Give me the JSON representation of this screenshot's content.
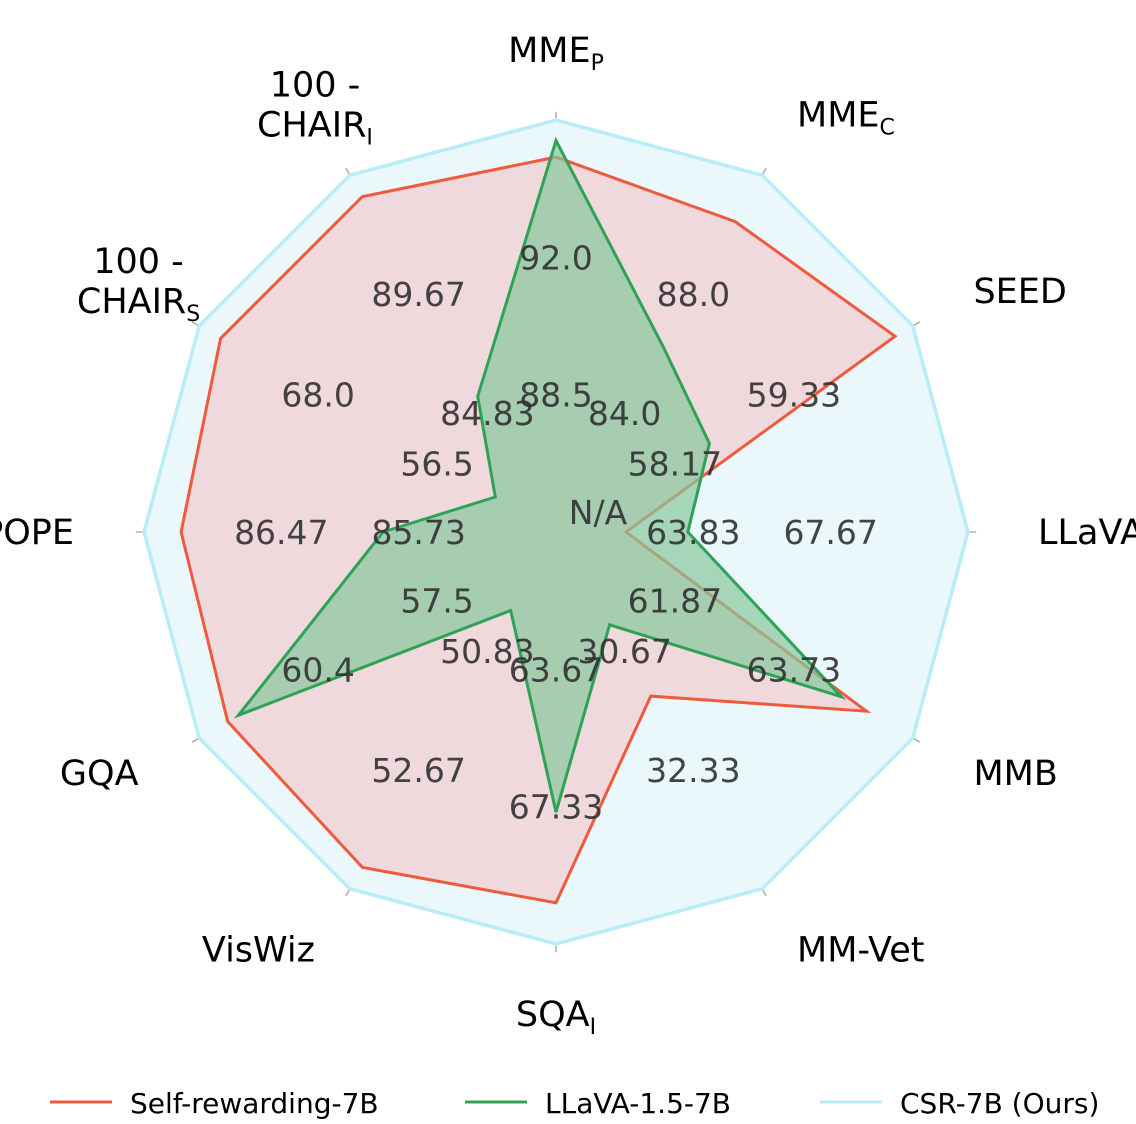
{
  "chart_data": {
    "type": "radar",
    "grid": true,
    "legend_position": "bottom",
    "axes": [
      {
        "id": "llava_w",
        "label": "LLaVA",
        "sub": "W",
        "ticks": [
          "63.83",
          "67.67"
        ]
      },
      {
        "id": "seed",
        "label": "SEED",
        "sub": "",
        "ticks": [
          "58.17",
          "59.33"
        ]
      },
      {
        "id": "mme_c",
        "label": "MME",
        "sub": "C",
        "ticks": [
          "84.0",
          "88.0"
        ]
      },
      {
        "id": "mme_p",
        "label": "MME",
        "sub": "P",
        "ticks": [
          "88.5",
          "92.0"
        ]
      },
      {
        "id": "chair_i",
        "label": "100 -",
        "label2": "CHAIR",
        "sub": "I",
        "ticks": [
          "84.83",
          "89.67"
        ]
      },
      {
        "id": "chair_s",
        "label": "100 -",
        "label2": "CHAIR",
        "sub": "S",
        "ticks": [
          "56.5",
          "68.0"
        ]
      },
      {
        "id": "pope",
        "label": "POPE",
        "sub": "",
        "ticks": [
          "85.73",
          "86.47"
        ]
      },
      {
        "id": "gqa",
        "label": "GQA",
        "sub": "",
        "ticks": [
          "57.5",
          "60.4"
        ]
      },
      {
        "id": "viswiz",
        "label": "VisWiz",
        "sub": "",
        "ticks": [
          "50.83",
          "52.67"
        ]
      },
      {
        "id": "sqa_i",
        "label": "SQA",
        "sub": "I",
        "ticks": [
          "63.67",
          "67.33"
        ]
      },
      {
        "id": "mm_vet",
        "label": "MM-Vet",
        "sub": "",
        "ticks": [
          "30.67",
          "32.33"
        ]
      },
      {
        "id": "mmb",
        "label": "MMB",
        "sub": "",
        "ticks": [
          "61.87",
          "63.73"
        ]
      }
    ],
    "center_label": "N/A",
    "radial_scale": [
      0,
      1
    ],
    "grid_levels": [
      0.3333,
      0.6667
    ],
    "series": [
      {
        "name": "CSR-7B (Ours)",
        "color": "#b9ecf9",
        "fill": "#eaf7fb",
        "values": [
          1,
          1,
          1,
          1,
          1,
          1,
          1,
          1,
          1,
          1,
          1,
          1
        ]
      },
      {
        "name": "Self-rewarding-7B",
        "color": "#ef5a3c",
        "fill": "#f1d4d6",
        "values": [
          0.17,
          0.95,
          0.87,
          0.91,
          0.94,
          0.94,
          0.91,
          0.92,
          0.94,
          0.9,
          0.46,
          0.87
        ]
      },
      {
        "name": "LLaVA-1.5-7B",
        "color": "#2ea356",
        "fill": "#88c89d",
        "values": [
          0.32,
          0.43,
          0.52,
          0.95,
          0.38,
          0.17,
          0.42,
          0.89,
          0.22,
          0.68,
          0.26,
          0.8
        ]
      }
    ]
  }
}
